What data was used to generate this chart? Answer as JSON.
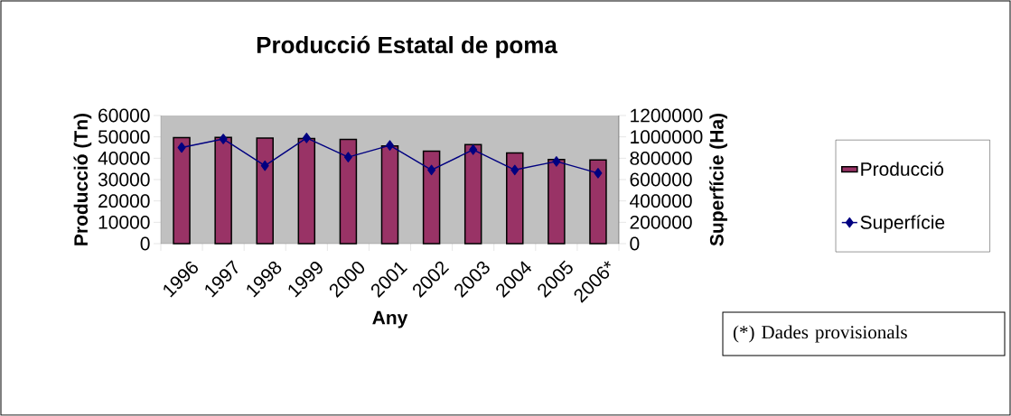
{
  "chart_data": {
    "type": "bar",
    "title": "Producció Estatal de poma",
    "xlabel": "Any",
    "ylabel": "Producció (Tn)",
    "y2label": "Superfície (Ha)",
    "categories": [
      "1996",
      "1997",
      "1998",
      "1999",
      "2000",
      "2001",
      "2002",
      "2003",
      "2004",
      "2005",
      "2006*"
    ],
    "series": [
      {
        "name": "Producció",
        "color": "#993366",
        "values": [
          49600,
          49800,
          49400,
          49200,
          48800,
          45700,
          43300,
          46400,
          42500,
          39400,
          39200
        ]
      },
      {
        "name": "Superfície",
        "type": "line",
        "axis": "y2",
        "color": "#000080",
        "values": [
          900000,
          980000,
          730000,
          990000,
          810000,
          920000,
          690000,
          880000,
          690000,
          770000,
          660000
        ]
      }
    ],
    "ylim": [
      0,
      60000
    ],
    "yticks": [
      0,
      10000,
      20000,
      30000,
      40000,
      50000,
      60000
    ],
    "y2lim": [
      0,
      1200000
    ],
    "y2ticks": [
      0,
      200000,
      400000,
      600000,
      800000,
      1000000,
      1200000
    ],
    "marker": "diamond",
    "legend": "right",
    "grid": false,
    "annotations": [
      "(*) Dades provisionals"
    ]
  }
}
